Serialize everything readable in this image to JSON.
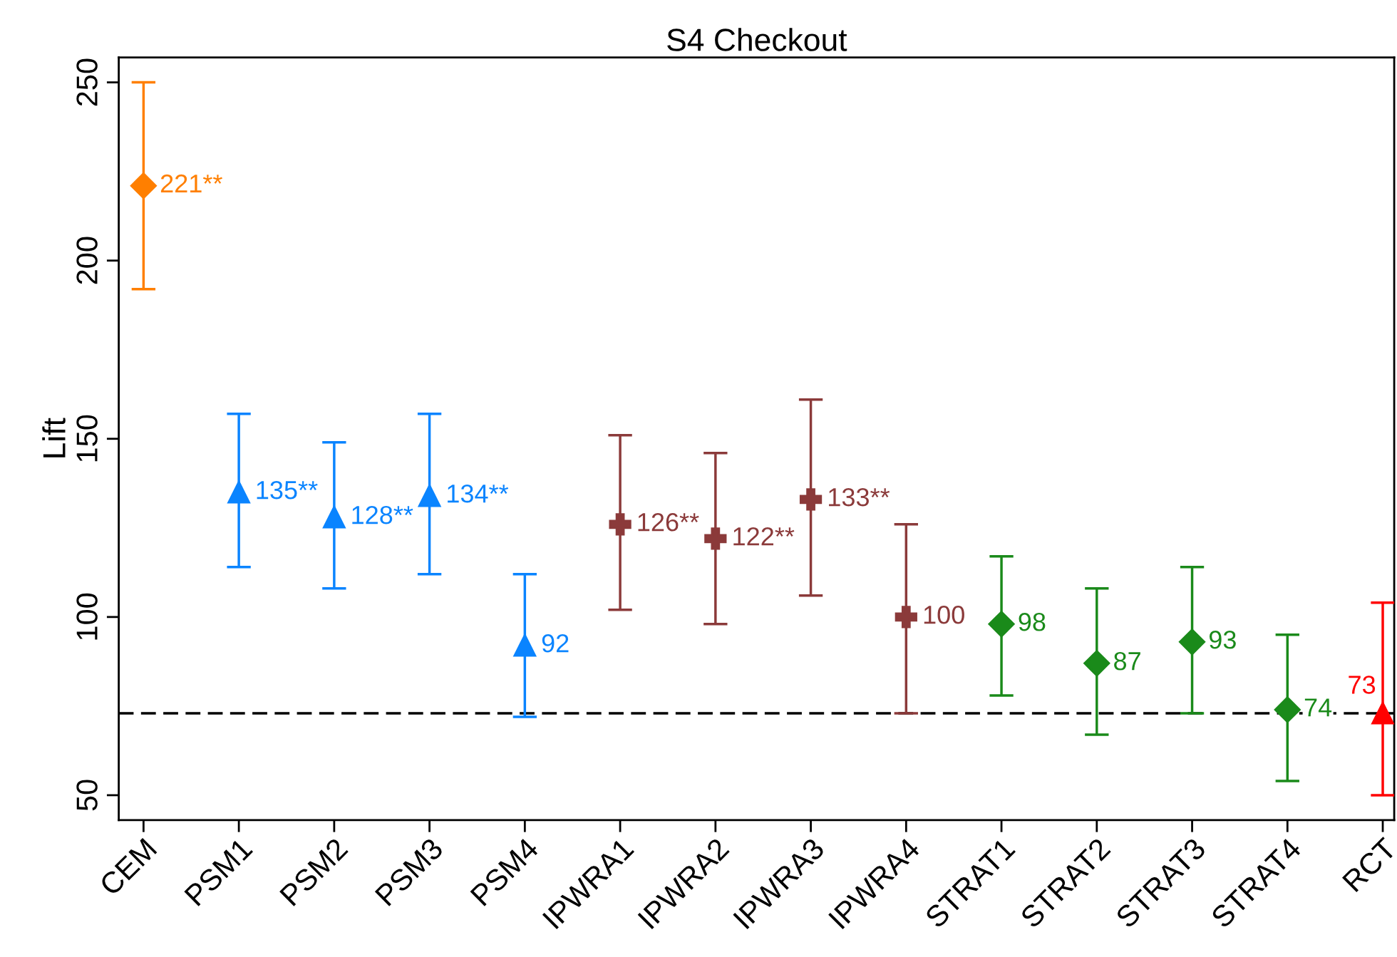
{
  "chart_data": {
    "type": "scatter",
    "title": "S4 Checkout",
    "ylabel": "Lift",
    "categories": [
      "CEM",
      "PSM1",
      "PSM2",
      "PSM3",
      "PSM4",
      "IPWRA1",
      "IPWRA2",
      "IPWRA3",
      "IPWRA4",
      "STRAT1",
      "STRAT2",
      "STRAT3",
      "STRAT4",
      "RCT"
    ],
    "series": [
      {
        "color": "#ff7f00",
        "marker": "diamond",
        "values": [
          221,
          null,
          null,
          null,
          null,
          null,
          null,
          null,
          null,
          null,
          null,
          null,
          null,
          null
        ],
        "errors": [
          [
            192,
            250
          ],
          null,
          null,
          null,
          null,
          null,
          null,
          null,
          null,
          null,
          null,
          null,
          null,
          null
        ],
        "value_labels": [
          "221**",
          null,
          null,
          null,
          null,
          null,
          null,
          null,
          null,
          null,
          null,
          null,
          null,
          null
        ]
      },
      {
        "color": "#0a84ff",
        "marker": "triangle",
        "values": [
          null,
          135,
          128,
          134,
          92,
          null,
          null,
          null,
          null,
          null,
          null,
          null,
          null,
          null
        ],
        "errors": [
          null,
          [
            114,
            157
          ],
          [
            108,
            149
          ],
          [
            112,
            157
          ],
          [
            72,
            112
          ],
          null,
          null,
          null,
          null,
          null,
          null,
          null,
          null,
          null
        ],
        "value_labels": [
          null,
          "135**",
          "128**",
          "134**",
          "92",
          null,
          null,
          null,
          null,
          null,
          null,
          null,
          null,
          null
        ]
      },
      {
        "color": "#8b3a3a",
        "marker": "cross",
        "values": [
          null,
          null,
          null,
          null,
          null,
          126,
          122,
          133,
          100,
          null,
          null,
          null,
          null,
          null
        ],
        "errors": [
          null,
          null,
          null,
          null,
          null,
          [
            102,
            151
          ],
          [
            98,
            146
          ],
          [
            106,
            161
          ],
          [
            73,
            126
          ],
          null,
          null,
          null,
          null,
          null
        ],
        "value_labels": [
          null,
          null,
          null,
          null,
          null,
          "126**",
          "122**",
          "133**",
          "100",
          null,
          null,
          null,
          null,
          null
        ]
      },
      {
        "color": "#1a8a1a",
        "marker": "diamond",
        "values": [
          null,
          null,
          null,
          null,
          null,
          null,
          null,
          null,
          null,
          98,
          87,
          93,
          74,
          null
        ],
        "errors": [
          null,
          null,
          null,
          null,
          null,
          null,
          null,
          null,
          null,
          [
            78,
            117
          ],
          [
            67,
            108
          ],
          [
            73,
            114
          ],
          [
            54,
            95
          ],
          null
        ],
        "value_labels": [
          null,
          null,
          null,
          null,
          null,
          null,
          null,
          null,
          null,
          "98",
          "87",
          "93",
          "74",
          null
        ]
      },
      {
        "color": "#ff0000",
        "marker": "triangle",
        "values": [
          null,
          null,
          null,
          null,
          null,
          null,
          null,
          null,
          null,
          null,
          null,
          null,
          null,
          73
        ],
        "errors": [
          null,
          null,
          null,
          null,
          null,
          null,
          null,
          null,
          null,
          null,
          null,
          null,
          null,
          [
            50,
            104
          ]
        ],
        "value_labels": [
          null,
          null,
          null,
          null,
          null,
          null,
          null,
          null,
          null,
          null,
          null,
          null,
          null,
          "73"
        ]
      }
    ],
    "ref_lines": [
      {
        "axis": "y",
        "value": 73,
        "color": "#000000",
        "line_style": "dashed"
      }
    ],
    "ylim": [
      43,
      257
    ],
    "yticks": [
      50,
      100,
      150,
      200,
      250
    ],
    "grid": false,
    "legend": false
  }
}
